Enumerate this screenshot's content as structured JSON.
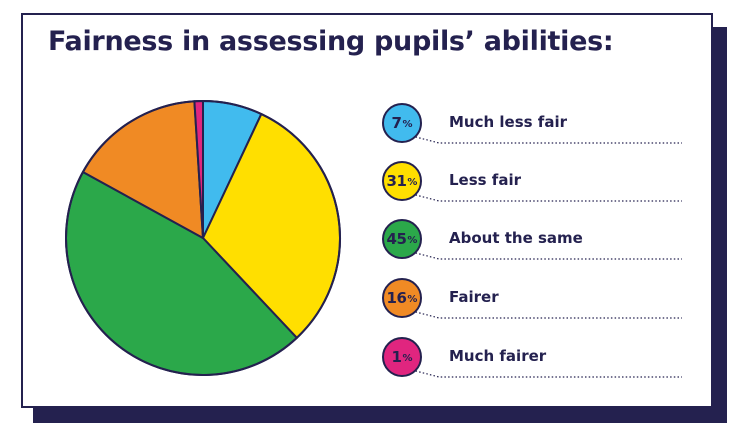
{
  "title": "Fairness in assessing pupils’ abilities:",
  "colors": {
    "navy": "#24214f",
    "blue": "#41bbee",
    "yellow": "#ffdf00",
    "green": "#2ba84a",
    "orange": "#f08a24",
    "pink": "#e0257f"
  },
  "chart_data": {
    "type": "pie",
    "title": "Fairness in assessing pupils’ abilities:",
    "slices": [
      {
        "label": "Much less fair",
        "value": 7,
        "display": "7",
        "unit": "%",
        "color": "#41bbee"
      },
      {
        "label": "Less fair",
        "value": 31,
        "display": "31",
        "unit": "%",
        "color": "#ffdf00"
      },
      {
        "label": "About the same",
        "value": 45,
        "display": "45",
        "unit": "%",
        "color": "#2ba84a"
      },
      {
        "label": "Fairer",
        "value": 16,
        "display": "16",
        "unit": "%",
        "color": "#f08a24"
      },
      {
        "label": "Much fairer",
        "value": 1,
        "display": "1",
        "unit": "%",
        "color": "#e0257f"
      }
    ],
    "legend": "right"
  }
}
